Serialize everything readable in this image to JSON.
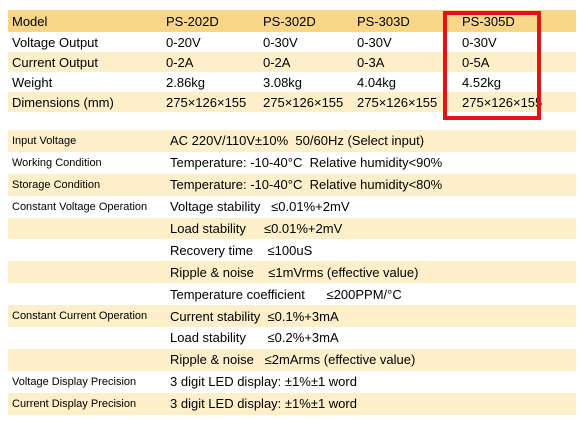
{
  "models_table": {
    "header": [
      "Model",
      "PS-202D",
      "PS-302D",
      "PS-303D",
      "PS-305D"
    ],
    "rows": [
      [
        "Voltage Output",
        "0-20V",
        "0-30V",
        "0-30V",
        "0-30V"
      ],
      [
        "Current Output",
        "0-2A",
        "0-2A",
        "0-3A",
        "0-5A"
      ],
      [
        "Weight",
        "2.86kg",
        "3.08kg",
        "4.04kg",
        "4.52kg"
      ],
      [
        "Dimensions (mm)",
        "275×126×155",
        "275×126×155",
        "275×126×155",
        "275×126×155"
      ]
    ],
    "highlight_color": "#e01414",
    "highlighted_model": "PS-305D"
  },
  "specs_table": {
    "rows": [
      {
        "label": "Input Voltage",
        "value": "AC 220V/110V±10%  50/60Hz (Select input)"
      },
      {
        "label": "Working Condition",
        "value": "Temperature: -10-40°C  Relative humidity<90%"
      },
      {
        "label": "Storage Condition",
        "value": "Temperature: -10-40°C  Relative humidity<80%"
      },
      {
        "label": "Constant Voltage Operation",
        "value": "Voltage stability   ≤0.01%+2mV"
      },
      {
        "label": "",
        "value": "Load stability     ≤0.01%+2mV"
      },
      {
        "label": "",
        "value": "Recovery time    ≤100uS"
      },
      {
        "label": "",
        "value": "Ripple & noise    ≤1mVrms (effective value)"
      },
      {
        "label": "",
        "value": "Temperature coefficient      ≤200PPM/°C"
      },
      {
        "label": "Constant Current Operation",
        "value": "Current stability  ≤0.1%+3mA"
      },
      {
        "label": "",
        "value": "Load stability      ≤0.2%+3mA"
      },
      {
        "label": "",
        "value": "Ripple & noise   ≤2mArms (effective value)"
      },
      {
        "label": "Voltage Display Precision",
        "value": "3 digit LED display: ±1%±1 word"
      },
      {
        "label": "Current Display Precision",
        "value": "3 digit LED display: ±1%±1 word"
      }
    ]
  },
  "colors": {
    "header_band": "#f7d687",
    "odd_band": "#fcefc9",
    "even_band": "#ffffff"
  }
}
